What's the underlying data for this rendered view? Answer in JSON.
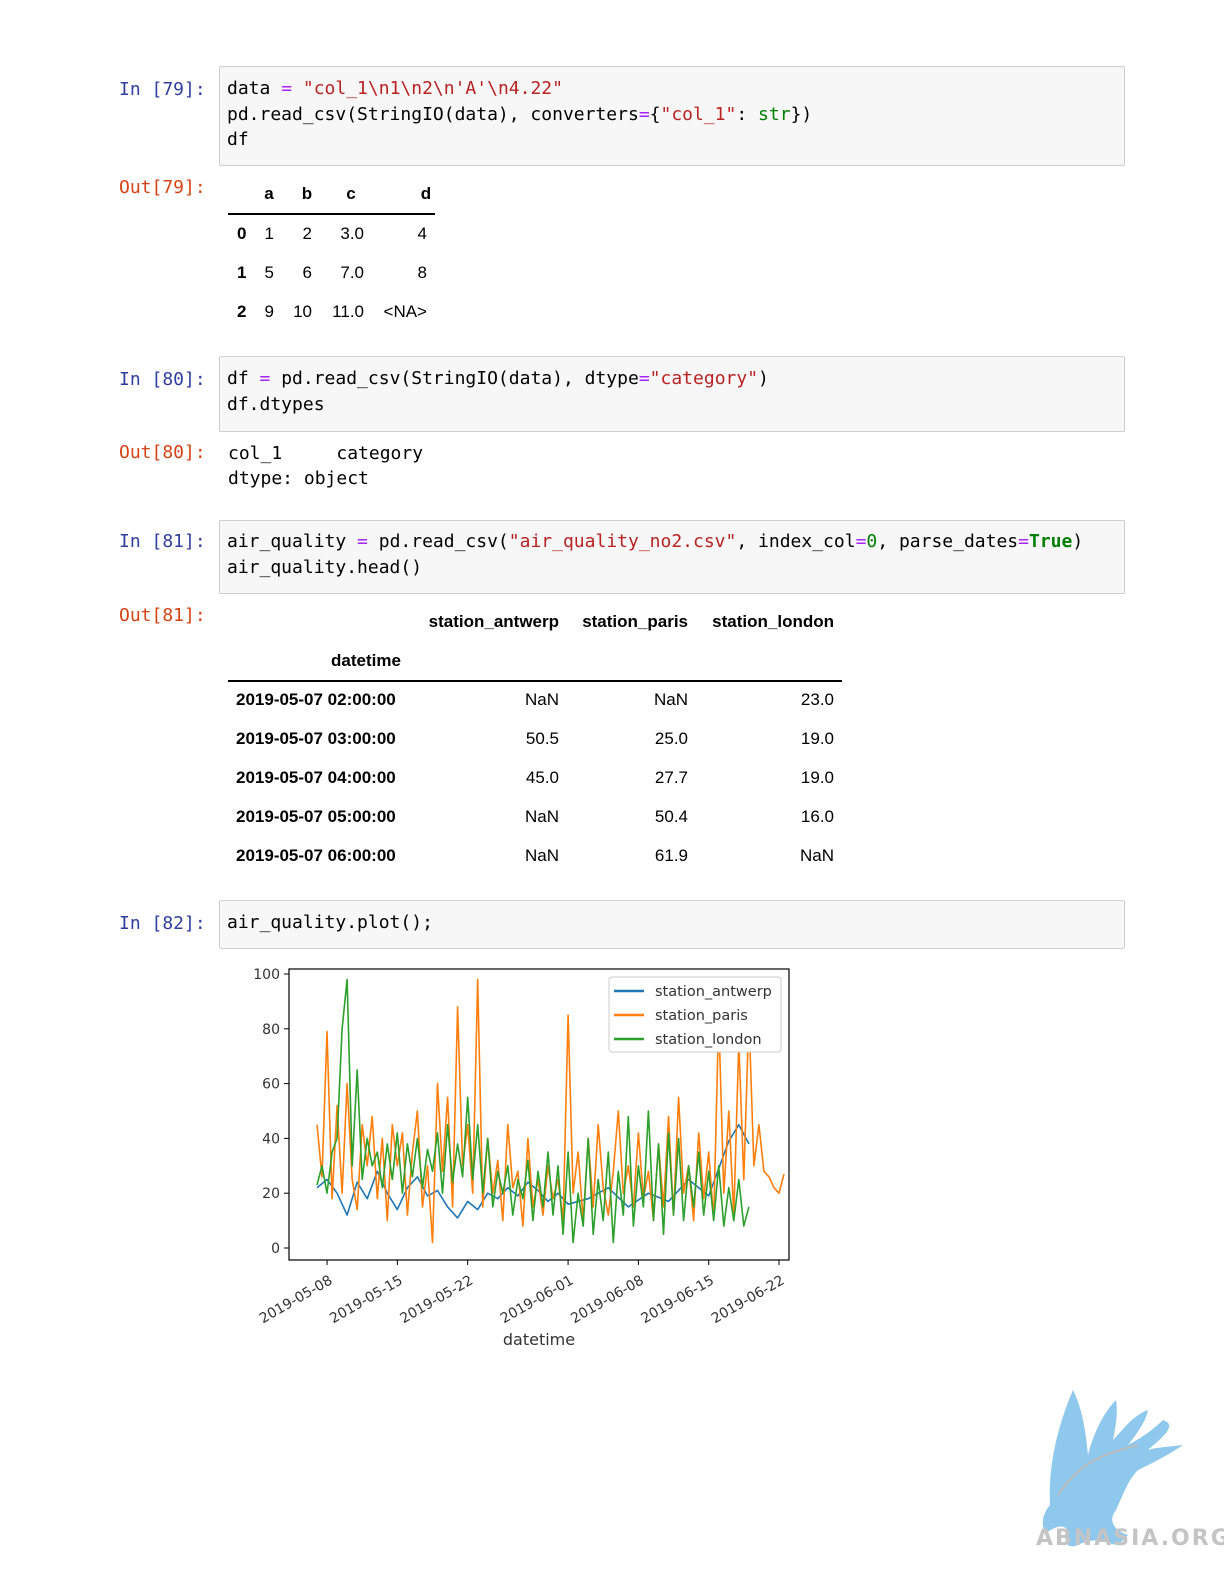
{
  "cells": [
    {
      "prompt_in": "In [79]:",
      "code": [
        "data = \"col_1\\n1\\n2\\n'A'\\n4.22\"",
        "pd.read_csv(StringIO(data), converters={\"col_1\": str})",
        "df"
      ],
      "prompt_out": "Out[79]:",
      "table": {
        "columns": [
          "a",
          "b",
          "c",
          "d"
        ],
        "rows": [
          {
            "index": "0",
            "values": [
              "1",
              "2",
              "3.0",
              "4"
            ]
          },
          {
            "index": "1",
            "values": [
              "5",
              "6",
              "7.0",
              "8"
            ]
          },
          {
            "index": "2",
            "values": [
              "9",
              "10",
              "11.0",
              "<NA>"
            ]
          }
        ]
      }
    },
    {
      "prompt_in": "In [80]:",
      "code": [
        "df = pd.read_csv(StringIO(data), dtype=\"category\")",
        "df.dtypes"
      ],
      "prompt_out": "Out[80]:",
      "output_lines": [
        "col_1     category",
        "dtype: object"
      ]
    },
    {
      "prompt_in": "In [81]:",
      "code": [
        "air_quality = pd.read_csv(\"air_quality_no2.csv\", index_col=0, parse_dates=True)",
        "air_quality.head()"
      ],
      "prompt_out": "Out[81]:",
      "table": {
        "columns": [
          "station_antwerp",
          "station_paris",
          "station_london"
        ],
        "index_name": "datetime",
        "rows": [
          {
            "index": "2019-05-07 02:00:00",
            "values": [
              "NaN",
              "NaN",
              "23.0"
            ]
          },
          {
            "index": "2019-05-07 03:00:00",
            "values": [
              "50.5",
              "25.0",
              "19.0"
            ]
          },
          {
            "index": "2019-05-07 04:00:00",
            "values": [
              "45.0",
              "27.7",
              "19.0"
            ]
          },
          {
            "index": "2019-05-07 05:00:00",
            "values": [
              "NaN",
              "50.4",
              "16.0"
            ]
          },
          {
            "index": "2019-05-07 06:00:00",
            "values": [
              "NaN",
              "61.9",
              "NaN"
            ]
          }
        ]
      }
    },
    {
      "prompt_in": "In [82]:",
      "code": [
        "air_quality.plot();"
      ]
    }
  ],
  "chart_data": {
    "type": "line",
    "xlabel": "datetime",
    "ylabel": "",
    "ylim": [
      0,
      100
    ],
    "yticks": [
      0,
      20,
      40,
      60,
      80,
      100
    ],
    "xticks": [
      "2019-05-08",
      "2019-05-15",
      "2019-05-22",
      "2019-06-01",
      "2019-06-08",
      "2019-06-15",
      "2019-06-22"
    ],
    "xlim": [
      "2019-05-07",
      "2019-06-22"
    ],
    "legend_position": "top-right",
    "grid": false,
    "series": [
      {
        "name": "station_antwerp",
        "color": "#1f77b4",
        "points": [
          [
            "2019-05-07",
            22
          ],
          [
            "2019-05-08",
            25
          ],
          [
            "2019-05-09",
            20
          ],
          [
            "2019-05-10",
            12
          ],
          [
            "2019-05-11",
            24
          ],
          [
            "2019-05-12",
            18
          ],
          [
            "2019-05-13",
            28
          ],
          [
            "2019-05-14",
            20
          ],
          [
            "2019-05-15",
            14
          ],
          [
            "2019-05-16",
            22
          ],
          [
            "2019-05-17",
            26
          ],
          [
            "2019-05-18",
            19
          ],
          [
            "2019-05-19",
            21
          ],
          [
            "2019-05-20",
            15
          ],
          [
            "2019-05-21",
            11
          ],
          [
            "2019-05-22",
            17
          ],
          [
            "2019-05-23",
            14
          ],
          [
            "2019-05-24",
            20
          ],
          [
            "2019-05-25",
            18
          ],
          [
            "2019-05-26",
            22
          ],
          [
            "2019-05-27",
            19
          ],
          [
            "2019-05-28",
            24
          ],
          [
            "2019-05-29",
            21
          ],
          [
            "2019-05-30",
            17
          ],
          [
            "2019-05-31",
            20
          ],
          [
            "2019-06-01",
            16
          ],
          [
            "2019-06-03",
            18
          ],
          [
            "2019-06-05",
            22
          ],
          [
            "2019-06-07",
            15
          ],
          [
            "2019-06-09",
            20
          ],
          [
            "2019-06-11",
            17
          ],
          [
            "2019-06-13",
            25
          ],
          [
            "2019-06-15",
            19
          ],
          [
            "2019-06-17",
            39
          ],
          [
            "2019-06-18",
            45
          ],
          [
            "2019-06-19",
            38
          ]
        ]
      },
      {
        "name": "station_paris",
        "color": "#ff7f0e",
        "points": [
          [
            "2019-05-07",
            45
          ],
          [
            "2019-05-07",
            26
          ],
          [
            "2019-05-08",
            79
          ],
          [
            "2019-05-08",
            18
          ],
          [
            "2019-05-09",
            52
          ],
          [
            "2019-05-09",
            20
          ],
          [
            "2019-05-10",
            60
          ],
          [
            "2019-05-10",
            25
          ],
          [
            "2019-05-11",
            14
          ],
          [
            "2019-05-11",
            45
          ],
          [
            "2019-05-12",
            30
          ],
          [
            "2019-05-12",
            48
          ],
          [
            "2019-05-13",
            18
          ],
          [
            "2019-05-13",
            40
          ],
          [
            "2019-05-14",
            10
          ],
          [
            "2019-05-14",
            45
          ],
          [
            "2019-05-15",
            30
          ],
          [
            "2019-05-15",
            42
          ],
          [
            "2019-05-16",
            12
          ],
          [
            "2019-05-16",
            35
          ],
          [
            "2019-05-17",
            50
          ],
          [
            "2019-05-17",
            15
          ],
          [
            "2019-05-18",
            30
          ],
          [
            "2019-05-18",
            2
          ],
          [
            "2019-05-19",
            60
          ],
          [
            "2019-05-19",
            28
          ],
          [
            "2019-05-20",
            55
          ],
          [
            "2019-05-20",
            15
          ],
          [
            "2019-05-21",
            88
          ],
          [
            "2019-05-21",
            30
          ],
          [
            "2019-05-22",
            45
          ],
          [
            "2019-05-22",
            20
          ],
          [
            "2019-05-23",
            98
          ],
          [
            "2019-05-23",
            15
          ],
          [
            "2019-05-24",
            40
          ],
          [
            "2019-05-24",
            20
          ],
          [
            "2019-05-25",
            32
          ],
          [
            "2019-05-25",
            10
          ],
          [
            "2019-05-26",
            45
          ],
          [
            "2019-05-26",
            22
          ],
          [
            "2019-05-27",
            28
          ],
          [
            "2019-05-27",
            8
          ],
          [
            "2019-05-28",
            40
          ],
          [
            "2019-05-28",
            15
          ],
          [
            "2019-05-29",
            25
          ],
          [
            "2019-05-29",
            12
          ],
          [
            "2019-05-30",
            30
          ],
          [
            "2019-05-30",
            18
          ],
          [
            "2019-05-31",
            25
          ],
          [
            "2019-05-31",
            10
          ],
          [
            "2019-06-01",
            85
          ],
          [
            "2019-06-01",
            20
          ],
          [
            "2019-06-02",
            35
          ],
          [
            "2019-06-02",
            10
          ],
          [
            "2019-06-03",
            40
          ],
          [
            "2019-06-03",
            15
          ],
          [
            "2019-06-04",
            45
          ],
          [
            "2019-06-04",
            22
          ],
          [
            "2019-06-05",
            12
          ],
          [
            "2019-06-05",
            28
          ],
          [
            "2019-06-06",
            50
          ],
          [
            "2019-06-06",
            20
          ],
          [
            "2019-06-07",
            30
          ],
          [
            "2019-06-07",
            15
          ],
          [
            "2019-06-08",
            42
          ],
          [
            "2019-06-08",
            18
          ],
          [
            "2019-06-09",
            28
          ],
          [
            "2019-06-09",
            10
          ],
          [
            "2019-06-10",
            38
          ],
          [
            "2019-06-10",
            15
          ],
          [
            "2019-06-11",
            48
          ],
          [
            "2019-06-11",
            12
          ],
          [
            "2019-06-12",
            55
          ],
          [
            "2019-06-12",
            20
          ],
          [
            "2019-06-13",
            30
          ],
          [
            "2019-06-13",
            10
          ],
          [
            "2019-06-14",
            42
          ],
          [
            "2019-06-14",
            18
          ],
          [
            "2019-06-15",
            35
          ],
          [
            "2019-06-15",
            10
          ],
          [
            "2019-06-16",
            85
          ],
          [
            "2019-06-16",
            20
          ],
          [
            "2019-06-17",
            50
          ],
          [
            "2019-06-17",
            12
          ],
          [
            "2019-06-18",
            75
          ],
          [
            "2019-06-18",
            25
          ],
          [
            "2019-06-19",
            85
          ],
          [
            "2019-06-19",
            30
          ],
          [
            "2019-06-20",
            45
          ],
          [
            "2019-06-20",
            28
          ],
          [
            "2019-06-21",
            26
          ],
          [
            "2019-06-21",
            22
          ],
          [
            "2019-06-22",
            20
          ],
          [
            "2019-06-22",
            27
          ]
        ]
      },
      {
        "name": "station_london",
        "color": "#2ca02c",
        "points": [
          [
            "2019-05-07",
            23
          ],
          [
            "2019-05-07",
            30
          ],
          [
            "2019-05-08",
            20
          ],
          [
            "2019-05-08",
            35
          ],
          [
            "2019-05-09",
            40
          ],
          [
            "2019-05-09",
            80
          ],
          [
            "2019-05-10",
            98
          ],
          [
            "2019-05-10",
            30
          ],
          [
            "2019-05-11",
            65
          ],
          [
            "2019-05-11",
            25
          ],
          [
            "2019-05-12",
            40
          ],
          [
            "2019-05-12",
            30
          ],
          [
            "2019-05-13",
            35
          ],
          [
            "2019-05-13",
            22
          ],
          [
            "2019-05-14",
            38
          ],
          [
            "2019-05-14",
            25
          ],
          [
            "2019-05-15",
            42
          ],
          [
            "2019-05-15",
            20
          ],
          [
            "2019-05-16",
            38
          ],
          [
            "2019-05-16",
            26
          ],
          [
            "2019-05-17",
            40
          ],
          [
            "2019-05-17",
            22
          ],
          [
            "2019-05-18",
            36
          ],
          [
            "2019-05-18",
            28
          ],
          [
            "2019-05-19",
            42
          ],
          [
            "2019-05-19",
            20
          ],
          [
            "2019-05-20",
            45
          ],
          [
            "2019-05-20",
            24
          ],
          [
            "2019-05-21",
            38
          ],
          [
            "2019-05-21",
            26
          ],
          [
            "2019-05-22",
            55
          ],
          [
            "2019-05-22",
            25
          ],
          [
            "2019-05-23",
            45
          ],
          [
            "2019-05-23",
            20
          ],
          [
            "2019-05-24",
            40
          ],
          [
            "2019-05-24",
            15
          ],
          [
            "2019-05-25",
            28
          ],
          [
            "2019-05-25",
            20
          ],
          [
            "2019-05-26",
            30
          ],
          [
            "2019-05-26",
            12
          ],
          [
            "2019-05-27",
            25
          ],
          [
            "2019-05-27",
            18
          ],
          [
            "2019-05-28",
            32
          ],
          [
            "2019-05-28",
            10
          ],
          [
            "2019-05-29",
            28
          ],
          [
            "2019-05-29",
            15
          ],
          [
            "2019-05-30",
            35
          ],
          [
            "2019-05-30",
            12
          ],
          [
            "2019-05-31",
            30
          ],
          [
            "2019-05-31",
            5
          ],
          [
            "2019-06-01",
            35
          ],
          [
            "2019-06-01",
            2
          ],
          [
            "2019-06-02",
            20
          ],
          [
            "2019-06-02",
            8
          ],
          [
            "2019-06-03",
            40
          ],
          [
            "2019-06-03",
            5
          ],
          [
            "2019-06-04",
            25
          ],
          [
            "2019-06-04",
            10
          ],
          [
            "2019-06-05",
            35
          ],
          [
            "2019-06-05",
            2
          ],
          [
            "2019-06-06",
            28
          ],
          [
            "2019-06-06",
            12
          ],
          [
            "2019-06-07",
            48
          ],
          [
            "2019-06-07",
            8
          ],
          [
            "2019-06-08",
            30
          ],
          [
            "2019-06-08",
            15
          ],
          [
            "2019-06-09",
            50
          ],
          [
            "2019-06-09",
            10
          ],
          [
            "2019-06-10",
            38
          ],
          [
            "2019-06-10",
            5
          ],
          [
            "2019-06-11",
            42
          ],
          [
            "2019-06-11",
            12
          ],
          [
            "2019-06-12",
            40
          ],
          [
            "2019-06-12",
            10
          ],
          [
            "2019-06-13",
            30
          ],
          [
            "2019-06-13",
            15
          ],
          [
            "2019-06-14",
            35
          ],
          [
            "2019-06-14",
            12
          ],
          [
            "2019-06-15",
            28
          ],
          [
            "2019-06-15",
            10
          ],
          [
            "2019-06-16",
            30
          ],
          [
            "2019-06-16",
            8
          ],
          [
            "2019-06-17",
            22
          ],
          [
            "2019-06-17",
            10
          ],
          [
            "2019-06-18",
            25
          ],
          [
            "2019-06-18",
            8
          ],
          [
            "2019-06-19",
            15
          ]
        ]
      }
    ]
  },
  "watermark": {
    "text": "ABNASIA.ORG",
    "logo_color": "#8ec8ec"
  }
}
